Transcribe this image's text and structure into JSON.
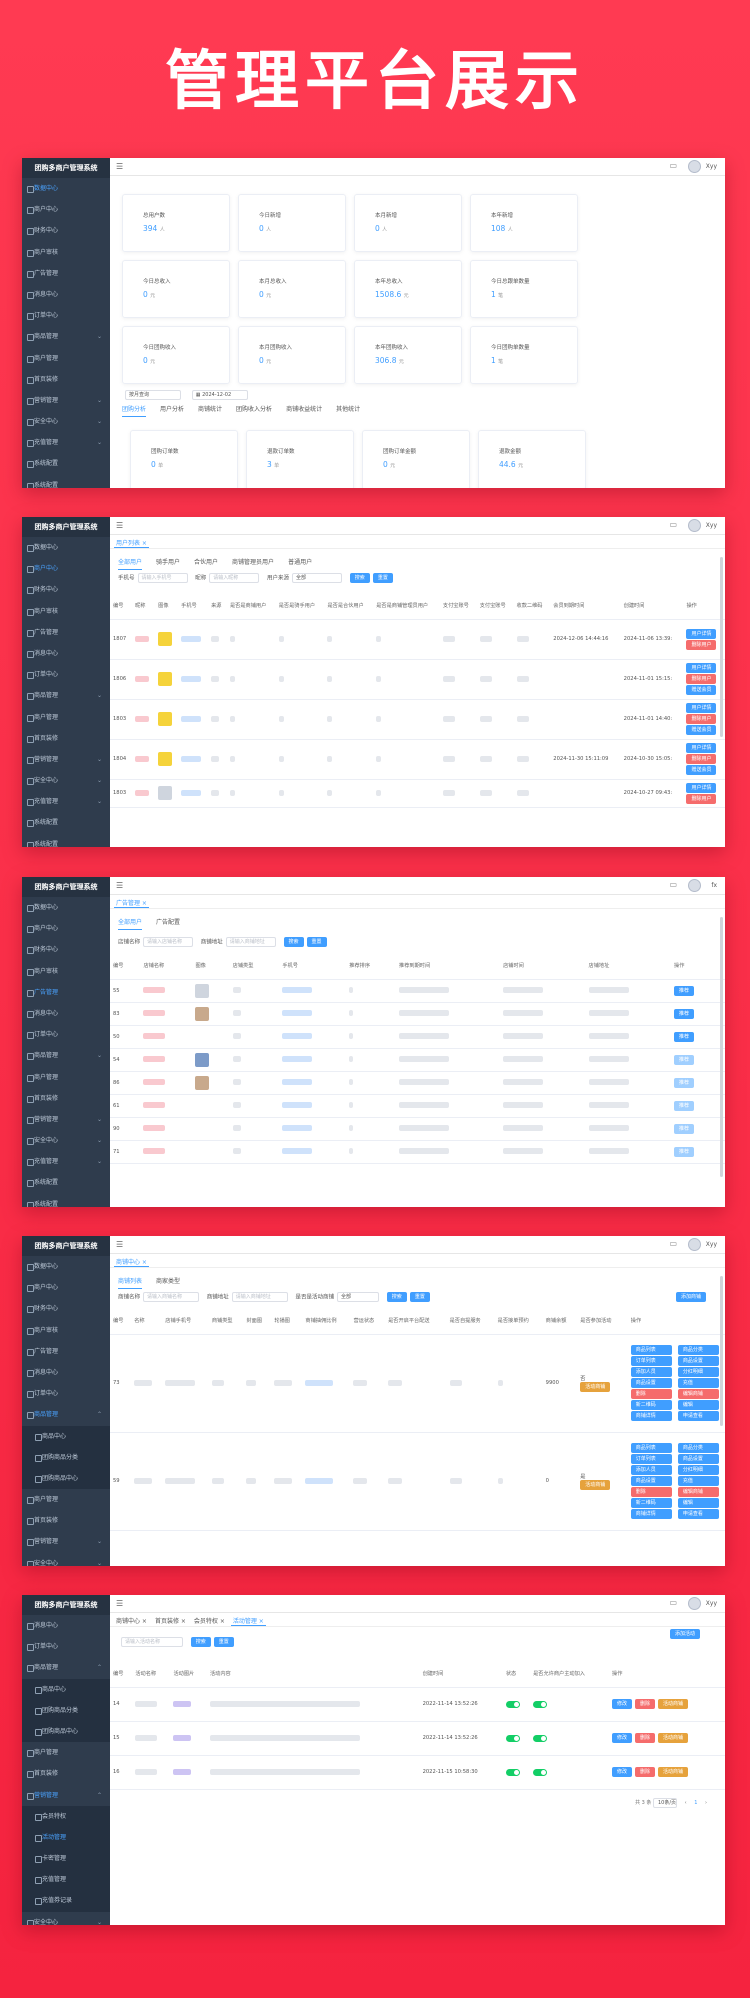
{
  "hero_title": "管理平台展示",
  "app_title": "团购多商户管理系统",
  "user": {
    "s1": "Xyy",
    "s2": "Xyy",
    "s3": "fx",
    "s4": "Xyy",
    "s5": "Xyy"
  },
  "sidebar": {
    "data": "数据中心",
    "merchant": "商户中心",
    "finance": "财务中心",
    "merchant_audit": "商户审核",
    "ad": "广告管理",
    "message": "消息中心",
    "order": "订单中心",
    "goods": "商品管理",
    "merchant_mgmt": "商户管理",
    "home_config": "首页装修",
    "marketing": "营销管理",
    "security": "安全中心",
    "recharge": "充值管理",
    "system": "系统配置",
    "goods_center": "商品中心",
    "group_goods_cat": "团购商品分类",
    "group_goods_center": "团购商品中心",
    "member_feature": "会员特权",
    "activity": "活动管理",
    "card": "卡密管理",
    "recharge_mgmt": "充值管理",
    "recharge_record": "充值券记录"
  },
  "s1": {
    "stats": [
      {
        "label": "总用户数",
        "value": "394",
        "unit": "人"
      },
      {
        "label": "今日新增",
        "value": "0",
        "unit": "人"
      },
      {
        "label": "本月新增",
        "value": "0",
        "unit": "人"
      },
      {
        "label": "本年新增",
        "value": "108",
        "unit": "人"
      },
      {
        "label": "今日总收入",
        "value": "0",
        "unit": "元"
      },
      {
        "label": "本月总收入",
        "value": "0",
        "unit": "元"
      },
      {
        "label": "本年总收入",
        "value": "1508.6",
        "unit": "元"
      },
      {
        "label": "今日总跟单数量",
        "value": "1",
        "unit": "笔"
      },
      {
        "label": "今日团购收入",
        "value": "0",
        "unit": "元"
      },
      {
        "label": "本月团购收入",
        "value": "0",
        "unit": "元"
      },
      {
        "label": "本年团购收入",
        "value": "306.8",
        "unit": "元"
      },
      {
        "label": "今日团购单数量",
        "value": "1",
        "unit": "笔"
      }
    ],
    "filter_type": "按月查询",
    "filter_date": "2024-12-02",
    "tabs": [
      "团购分析",
      "用户分析",
      "商铺统计",
      "团购收入分析",
      "商铺收益统计",
      "其他统计"
    ],
    "group_stats": [
      {
        "label": "团购订单数",
        "value": "0",
        "unit": "单"
      },
      {
        "label": "退款订单数",
        "value": "3",
        "unit": "单"
      },
      {
        "label": "团购订单金额",
        "value": "0",
        "unit": "元"
      },
      {
        "label": "退款金额",
        "value": "44.6",
        "unit": "元"
      }
    ]
  },
  "s2": {
    "crumb": "用户列表",
    "tabs": [
      "全部用户",
      "骑手用户",
      "合伙用户",
      "商铺管理员用户",
      "普通用户"
    ],
    "f_phone": "手机号",
    "f_phone_ph": "请输入手机号",
    "f_nick": "昵称",
    "f_nick_ph": "请输入昵称",
    "f_src": "用户来源",
    "f_src_val": "全部",
    "search": "搜索",
    "reset": "重置",
    "cols": [
      "编号",
      "昵称",
      "图像",
      "手机号",
      "来源",
      "是否是商铺用户",
      "是否是骑手用户",
      "是否是合伙用户",
      "是否是商铺管理员用户",
      "支付宝账号",
      "支付宝账号",
      "收款二维码",
      "会员到期时间",
      "创建时间",
      "操作"
    ],
    "rows": [
      {
        "id": "1807",
        "vip": "2024-12-06 14:44:16",
        "created": "2024-11-06 13:39:"
      },
      {
        "id": "1806",
        "vip": "",
        "created": "2024-11-01 15:15:"
      },
      {
        "id": "1803",
        "vip": "",
        "created": "2024-11-01 14:40:"
      },
      {
        "id": "1804",
        "vip": "2024-11-30 15:11:09",
        "created": "2024-10-30 15:05:"
      },
      {
        "id": "1803",
        "vip": "",
        "created": "2024-10-27 09:43:"
      }
    ],
    "ops": [
      "用户详情",
      "删除用户",
      "赠送会员"
    ]
  },
  "s3": {
    "crumb": "广告管理",
    "tabs": [
      "全部用户",
      "广告配置"
    ],
    "f_name": "店铺名称",
    "f_name_ph": "请输入店铺名称",
    "f_addr": "商铺地址",
    "f_addr_ph": "请输入商铺地址",
    "search": "搜索",
    "reset": "重置",
    "cols": [
      "编号",
      "店铺名称",
      "图像",
      "店铺类型",
      "手机号",
      "推荐排序",
      "推荐到期时间",
      "店铺时间",
      "店铺地址",
      "操作"
    ],
    "rows": [
      "55",
      "83",
      "50",
      "54",
      "86",
      "61",
      "90",
      "71"
    ],
    "op": "推荐"
  },
  "s4": {
    "crumb": "商铺中心",
    "tabs": [
      "商铺列表",
      "商家类型"
    ],
    "f_name": "商铺名称",
    "f_name_ph": "请输入商铺名称",
    "f_addr": "商铺地址",
    "f_addr_ph": "请输入商铺地址",
    "f_promo": "是否是活动商铺",
    "f_promo_val": "全部",
    "search": "搜索",
    "reset": "重置",
    "add": "添加商铺",
    "cols": [
      "编号",
      "名称",
      "店铺手机号",
      "商铺类型",
      "封面图",
      "轮播图",
      "商铺抽佣比例",
      "营运状态",
      "是否开启平台配送",
      "是否自提服务",
      "是否接单预约",
      "商铺余额",
      "是否参加活动",
      "操作"
    ],
    "rows": [
      {
        "id": "73",
        "bal": "9900",
        "flag": "否",
        "act": "活动商铺"
      },
      {
        "id": "59",
        "bal": "0",
        "flag": "是",
        "act": "活动商铺"
      }
    ],
    "ops": [
      "商品列表",
      "商品分类",
      "订单列表",
      "商品设置",
      "添加人员",
      "分红明细",
      "商品设置",
      "充值",
      "删除",
      "编辑商铺",
      "新二维码",
      "编辑",
      "商铺详情",
      "申请查看"
    ]
  },
  "s5": {
    "tags": [
      "商铺中心",
      "首页装修",
      "会员特权",
      "活动管理"
    ],
    "add": "添加活动",
    "f_ph": "请输入活动名称",
    "search": "搜索",
    "reset": "重置",
    "cols": [
      "编号",
      "活动名称",
      "活动图片",
      "活动内容",
      "创建时间",
      "状态",
      "是否允许商户主动加入",
      "操作"
    ],
    "rows": [
      {
        "id": "14",
        "time": "2022-11-14 13:52:26"
      },
      {
        "id": "15",
        "time": "2022-11-14 13:52:26"
      },
      {
        "id": "16",
        "time": "2022-11-15 10:58:30"
      }
    ],
    "ops": [
      "修改",
      "删除",
      "活动商铺"
    ],
    "pager": {
      "total": "共 3 条",
      "size": "10条/页",
      "page": "1"
    }
  }
}
